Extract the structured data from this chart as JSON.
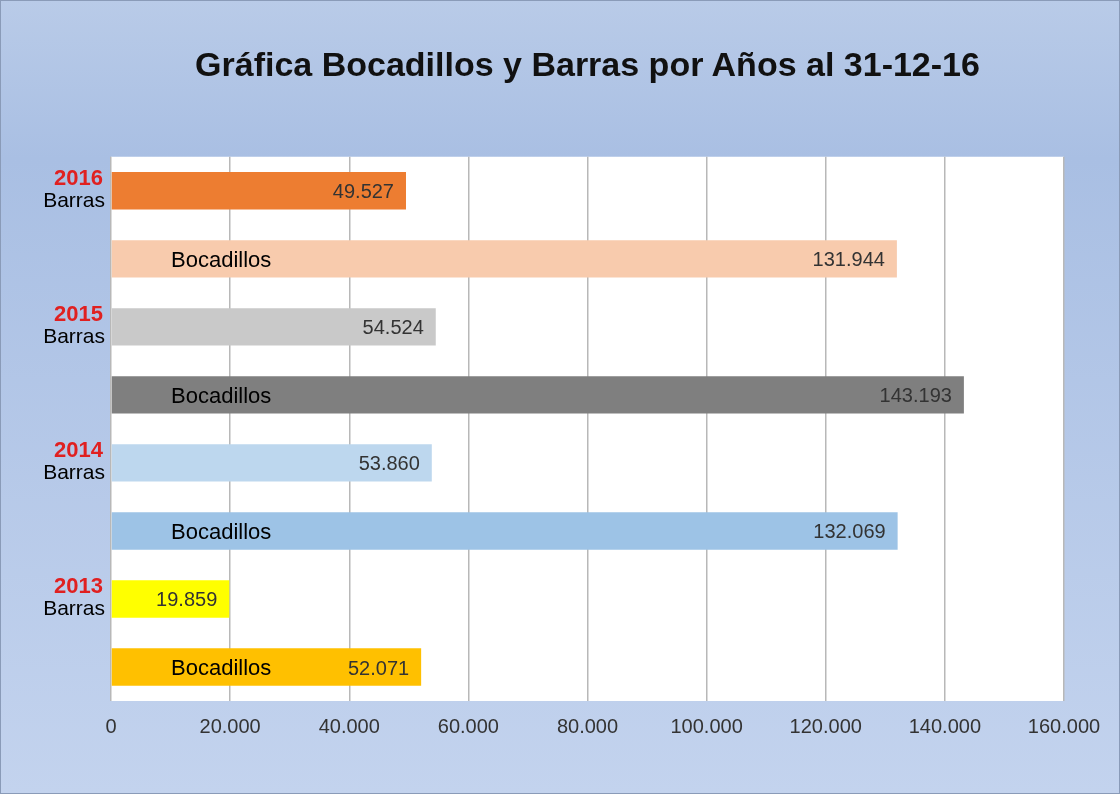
{
  "chart_data": {
    "type": "bar",
    "orientation": "horizontal",
    "title": "Gráfica Bocadillos y Barras por Años al 31-12-16",
    "categories": [
      "2016 Barras",
      "Bocadillos",
      "2015 Barras",
      "Bocadillos",
      "2014 Barras",
      "Bocadillos",
      "2013 Barras",
      "Bocadillos"
    ],
    "values": [
      49527,
      131944,
      54524,
      143193,
      53860,
      132069,
      19859,
      52071
    ],
    "colors": [
      "#ed7d31",
      "#f8cbad",
      "#c9c9c9",
      "#7f7f7f",
      "#bdd7ee",
      "#9dc3e6",
      "#ffff00",
      "#ffc000"
    ],
    "value_labels": [
      "49.527",
      "131.944",
      "54.524",
      "143.193",
      "53.860",
      "132.069",
      "19.859",
      "52.071"
    ],
    "xlim": [
      0,
      160000
    ],
    "xticks": [
      {
        "value": 0,
        "label": "0"
      },
      {
        "value": 20000,
        "label": "20.000"
      },
      {
        "value": 40000,
        "label": "40.000"
      },
      {
        "value": 60000,
        "label": "60.000"
      },
      {
        "value": 80000,
        "label": "80.000"
      },
      {
        "value": 100000,
        "label": "100.000"
      },
      {
        "value": 120000,
        "label": "120.000"
      },
      {
        "value": 140000,
        "label": "140.000"
      },
      {
        "value": 160000,
        "label": "160.000"
      }
    ],
    "grid": "x",
    "legend": false
  }
}
